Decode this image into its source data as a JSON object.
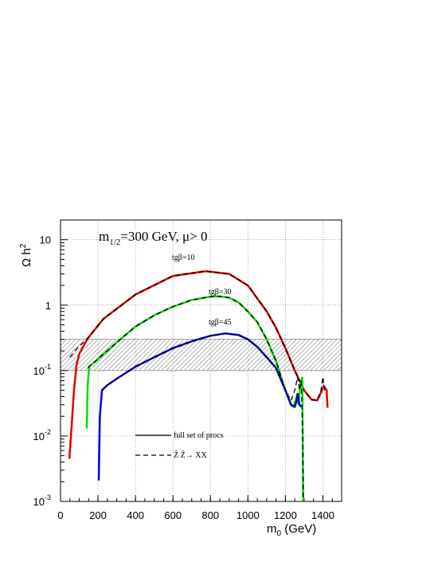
{
  "chart_data": {
    "type": "line",
    "log_y": true,
    "grid": true,
    "title_parts": {
      "text": "m",
      "sub": "1/2",
      "rest": "=300 GeV, μ> 0"
    },
    "x_label_parts": {
      "text": "m",
      "sub": "0",
      "rest": " (GeV)"
    },
    "y_label_parts": {
      "text": "Ω h",
      "sup": "2"
    },
    "xlim": [
      0,
      1500
    ],
    "ylim": [
      0.001,
      20
    ],
    "xticks": [
      0,
      200,
      400,
      600,
      800,
      1000,
      1200,
      1400
    ],
    "yticks": [
      {
        "value": 0.001,
        "label": "10",
        "exponent": "-3"
      },
      {
        "value": 0.01,
        "label": "10",
        "exponent": "-2"
      },
      {
        "value": 0.1,
        "label": "10",
        "exponent": "-1"
      },
      1,
      10
    ],
    "band": [
      0.1,
      0.3
    ],
    "legend": [
      {
        "label": "full set of procs",
        "style": "solid"
      },
      {
        "label": "Z̃ Z̃→ XX",
        "style": "dashed"
      }
    ],
    "series": [
      {
        "name": "tgβ=10",
        "color": "#e00000",
        "x": [
          47,
          60,
          72,
          85,
          100,
          145,
          230,
          400,
          600,
          775,
          900,
          1000,
          1100,
          1150,
          1200,
          1250,
          1300,
          1340,
          1370,
          1395,
          1405,
          1420,
          1425
        ],
        "values": [
          0.0045,
          0.015,
          0.05,
          0.12,
          0.18,
          0.31,
          0.62,
          1.45,
          2.8,
          3.3,
          3.0,
          2.0,
          0.8,
          0.45,
          0.22,
          0.1,
          0.05,
          0.036,
          0.035,
          0.05,
          0.058,
          0.05,
          0.027
        ],
        "zz_x": [
          50,
          90,
          145,
          230,
          400,
          600,
          775,
          900,
          1000,
          1100,
          1150,
          1200,
          1250,
          1300,
          1340,
          1370,
          1390,
          1400,
          1410
        ],
        "zz_values": [
          0.16,
          0.22,
          0.31,
          0.62,
          1.45,
          2.8,
          3.3,
          3.0,
          2.0,
          0.8,
          0.45,
          0.22,
          0.1,
          0.05,
          0.036,
          0.035,
          0.05,
          0.08,
          0.05
        ]
      },
      {
        "name": "tgβ=30",
        "color": "#00dd00",
        "x": [
          140,
          145,
          153,
          200,
          300,
          400,
          500,
          600,
          700,
          800,
          850,
          900,
          950,
          1000,
          1050,
          1100,
          1150,
          1200,
          1230,
          1245,
          1260,
          1270,
          1280,
          1290,
          1295
        ],
        "values": [
          0.013,
          0.06,
          0.115,
          0.15,
          0.27,
          0.47,
          0.7,
          0.95,
          1.2,
          1.35,
          1.36,
          1.3,
          1.1,
          0.8,
          0.55,
          0.3,
          0.14,
          0.05,
          0.03,
          0.028,
          0.04,
          0.03,
          0.06,
          0.08,
          0.001
        ],
        "zz_x": [
          145,
          200,
          300,
          400,
          500,
          600,
          700,
          800,
          850,
          900,
          950,
          1000,
          1050,
          1100,
          1150,
          1200,
          1230,
          1250,
          1265,
          1275,
          1285,
          1292,
          1295
        ],
        "zz_values": [
          0.11,
          0.15,
          0.27,
          0.47,
          0.7,
          0.95,
          1.2,
          1.35,
          1.36,
          1.3,
          1.1,
          0.8,
          0.55,
          0.3,
          0.14,
          0.05,
          0.035,
          0.05,
          0.08,
          0.05,
          0.07,
          0.01,
          0.001
        ]
      },
      {
        "name": "tgβ=45",
        "color": "#0000dd",
        "x": [
          204,
          210,
          221,
          250,
          300,
          400,
          500,
          600,
          700,
          800,
          880,
          950,
          1000,
          1050,
          1100,
          1150,
          1200,
          1230,
          1250,
          1260,
          1265,
          1275,
          1285
        ],
        "values": [
          0.0021,
          0.02,
          0.05,
          0.06,
          0.075,
          0.115,
          0.16,
          0.22,
          0.28,
          0.34,
          0.37,
          0.35,
          0.3,
          0.23,
          0.16,
          0.11,
          0.05,
          0.03,
          0.028,
          0.035,
          0.045,
          0.03,
          0.028
        ],
        "zz_x": [
          221,
          250,
          300,
          400,
          500,
          600,
          700,
          800,
          880,
          950,
          1000,
          1050,
          1100,
          1150,
          1200,
          1230,
          1250,
          1260,
          1265
        ],
        "zz_values": [
          0.05,
          0.06,
          0.075,
          0.115,
          0.16,
          0.22,
          0.28,
          0.34,
          0.37,
          0.35,
          0.3,
          0.23,
          0.16,
          0.11,
          0.05,
          0.03,
          0.028,
          0.035,
          0.045
        ]
      }
    ]
  }
}
